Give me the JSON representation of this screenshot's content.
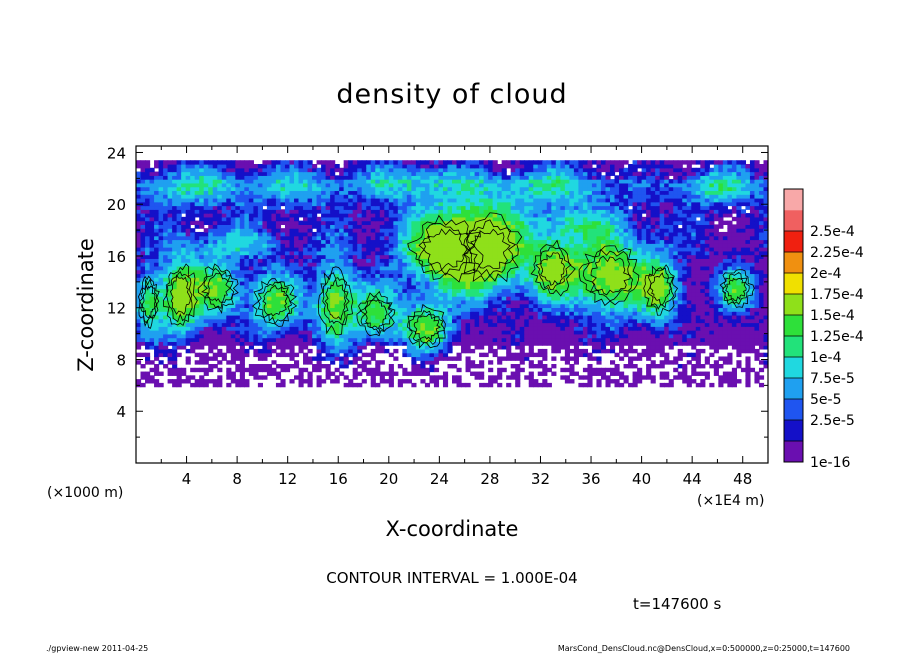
{
  "chart_data": {
    "type": "heatmap",
    "title": "density of cloud",
    "xlabel": "X-coordinate",
    "ylabel": "Z-coordinate",
    "x_unit_left": "(×1000 m)",
    "x_unit_right": "(×1E4 m)",
    "xlim": [
      0,
      50
    ],
    "ylim": [
      0,
      24.5
    ],
    "x_ticks": [
      "4",
      "8",
      "12",
      "16",
      "20",
      "24",
      "28",
      "32",
      "36",
      "40",
      "44",
      "48"
    ],
    "y_ticks": [
      "4",
      "8",
      "12",
      "16",
      "20",
      "24"
    ],
    "colorbar": {
      "labels": [
        "1e-16",
        "2.5e-5",
        "5e-5",
        "7.5e-5",
        "1e-4",
        "1.25e-4",
        "1.5e-4",
        "1.75e-4",
        "2e-4",
        "2.25e-4",
        "2.5e-4"
      ],
      "colors": [
        "#6a0fb0",
        "#1410c8",
        "#1f55f0",
        "#1fa0f0",
        "#20d8e0",
        "#22e27a",
        "#2ee03a",
        "#8fe01a",
        "#f0e000",
        "#f09010",
        "#f02010",
        "#f06060",
        "#f8a8a8"
      ]
    },
    "contour_interval_text": "CONTOUR INTERVAL = 1.000E-04",
    "time_text": "t=147600 s",
    "footer_left": "./gpview-new   2011-04-25",
    "footer_right": "MarsCond_DensCloud.nc@DensCloud,x=0:500000,z=0:25000,t=147600"
  }
}
